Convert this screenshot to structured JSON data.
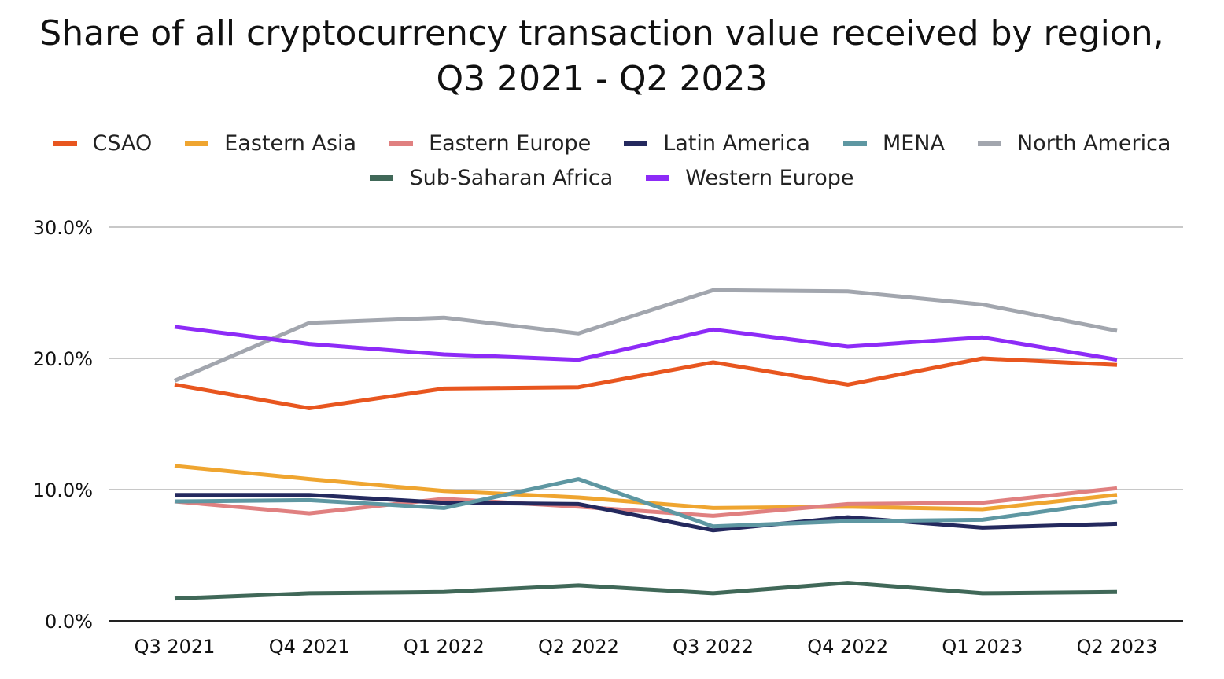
{
  "chart_data": {
    "type": "line",
    "title_line1": "Share of all cryptocurrency transaction value received by region,",
    "title_line2": "Q3 2021 - Q2 2023",
    "xlabel": "",
    "ylabel": "",
    "ylim": [
      0,
      30
    ],
    "yticks": [
      0,
      10,
      20,
      30
    ],
    "ytick_labels": [
      "0.0%",
      "10.0%",
      "20.0%",
      "30.0%"
    ],
    "grid": true,
    "legend_position": "top-center",
    "categories": [
      "Q3 2021",
      "Q4 2021",
      "Q1 2022",
      "Q2 2022",
      "Q3 2022",
      "Q4 2022",
      "Q1 2023",
      "Q2 2023"
    ],
    "series": [
      {
        "name": "CSAO",
        "color": "#E8561F",
        "values": [
          18.0,
          16.2,
          17.7,
          17.8,
          19.7,
          18.0,
          20.0,
          19.5
        ]
      },
      {
        "name": "Eastern Asia",
        "color": "#EFA530",
        "values": [
          11.8,
          10.8,
          9.9,
          9.4,
          8.6,
          8.7,
          8.5,
          9.6
        ]
      },
      {
        "name": "Eastern Europe",
        "color": "#E08080",
        "values": [
          9.1,
          8.2,
          9.3,
          8.7,
          8.0,
          8.9,
          9.0,
          10.1
        ]
      },
      {
        "name": "Latin America",
        "color": "#24295E",
        "values": [
          9.6,
          9.6,
          9.0,
          8.9,
          6.9,
          7.9,
          7.1,
          7.4
        ]
      },
      {
        "name": "MENA",
        "color": "#5E97A2",
        "values": [
          9.1,
          9.2,
          8.6,
          10.8,
          7.2,
          7.6,
          7.7,
          9.1
        ]
      },
      {
        "name": "North America",
        "color": "#A2A6AE",
        "values": [
          18.3,
          22.7,
          23.1,
          21.9,
          25.2,
          25.1,
          24.1,
          22.1
        ]
      },
      {
        "name": "Sub-Saharan Africa",
        "color": "#406858",
        "values": [
          1.7,
          2.1,
          2.2,
          2.7,
          2.1,
          2.9,
          2.1,
          2.2
        ]
      },
      {
        "name": "Western Europe",
        "color": "#8D2BF7",
        "values": [
          22.4,
          21.1,
          20.3,
          19.9,
          22.2,
          20.9,
          21.6,
          19.9
        ]
      }
    ]
  }
}
